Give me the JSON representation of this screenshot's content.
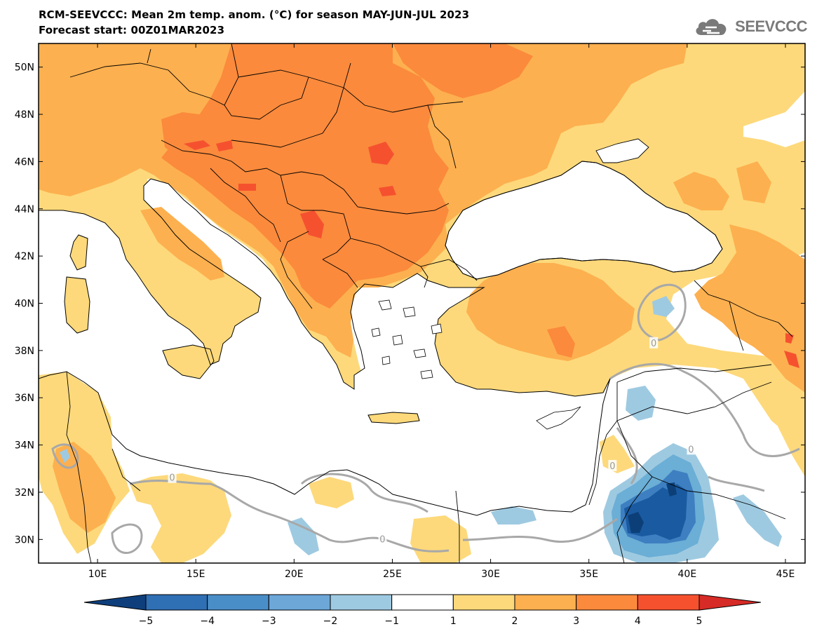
{
  "header": {
    "title_line1": "RCM-SEEVCCC: Mean 2m temp. anom. (°C) for season MAY-JUN-JUL 2023",
    "title_line2": "Forecast start: 00Z01MAR2023",
    "logo_text": "SEEVCCC"
  },
  "map": {
    "lon_range": [
      7,
      46
    ],
    "lat_range": [
      29,
      51
    ],
    "lat_ticks": [
      {
        "value": 50,
        "label": "50N"
      },
      {
        "value": 48,
        "label": "48N"
      },
      {
        "value": 46,
        "label": "46N"
      },
      {
        "value": 44,
        "label": "44N"
      },
      {
        "value": 42,
        "label": "42N"
      },
      {
        "value": 40,
        "label": "40N"
      },
      {
        "value": 38,
        "label": "38N"
      },
      {
        "value": 36,
        "label": "36N"
      },
      {
        "value": 34,
        "label": "34N"
      },
      {
        "value": 32,
        "label": "32N"
      },
      {
        "value": 30,
        "label": "30N"
      }
    ],
    "lon_ticks": [
      {
        "value": 10,
        "label": "10E"
      },
      {
        "value": 15,
        "label": "15E"
      },
      {
        "value": 20,
        "label": "20E"
      },
      {
        "value": 25,
        "label": "25E"
      },
      {
        "value": 30,
        "label": "30E"
      },
      {
        "value": 35,
        "label": "35E"
      },
      {
        "value": 40,
        "label": "40E"
      },
      {
        "value": 45,
        "label": "45E"
      }
    ],
    "contour_labels": [
      {
        "text": "0",
        "lon": 13.8,
        "lat": 32.6
      },
      {
        "text": "0",
        "lon": 24.5,
        "lat": 30.0
      },
      {
        "text": "0",
        "lon": 36.2,
        "lat": 33.1
      },
      {
        "text": "0",
        "lon": 38.3,
        "lat": 38.3
      },
      {
        "text": "0",
        "lon": 40.2,
        "lat": 33.8
      }
    ],
    "colors": {
      "sea": "#ffffff",
      "anom_1_2": "#fdd97b",
      "anom_2_3": "#fdb04f",
      "anom_3_4": "#fb8a3c",
      "anom_4_5": "#f5512f",
      "anom_m1_m2": "#9ecae1",
      "anom_m2_m3": "#6baed6",
      "anom_m3_m4": "#3d7fc0",
      "anom_m4_m5": "#1a5aa0",
      "anom_m5": "#0c3f78",
      "zero_contour": "#a8a8a8",
      "border": "#000000"
    }
  },
  "colorbar": {
    "levels": [
      {
        "label": "−5",
        "value": -5
      },
      {
        "label": "−4",
        "value": -4
      },
      {
        "label": "−3",
        "value": -3
      },
      {
        "label": "−2",
        "value": -2
      },
      {
        "label": "−1",
        "value": -1
      },
      {
        "label": "1",
        "value": 1
      },
      {
        "label": "2",
        "value": 2
      },
      {
        "label": "3",
        "value": 3
      },
      {
        "label": "4",
        "value": 4
      },
      {
        "label": "5",
        "value": 5
      }
    ],
    "segment_colors": [
      "#0e3f7c",
      "#2f6fb3",
      "#4a8ec8",
      "#6ca7d8",
      "#9ecae1",
      "#ffffff",
      "#fdd97b",
      "#fdb04f",
      "#fb8a3c",
      "#f5512f",
      "#d62b26"
    ]
  }
}
